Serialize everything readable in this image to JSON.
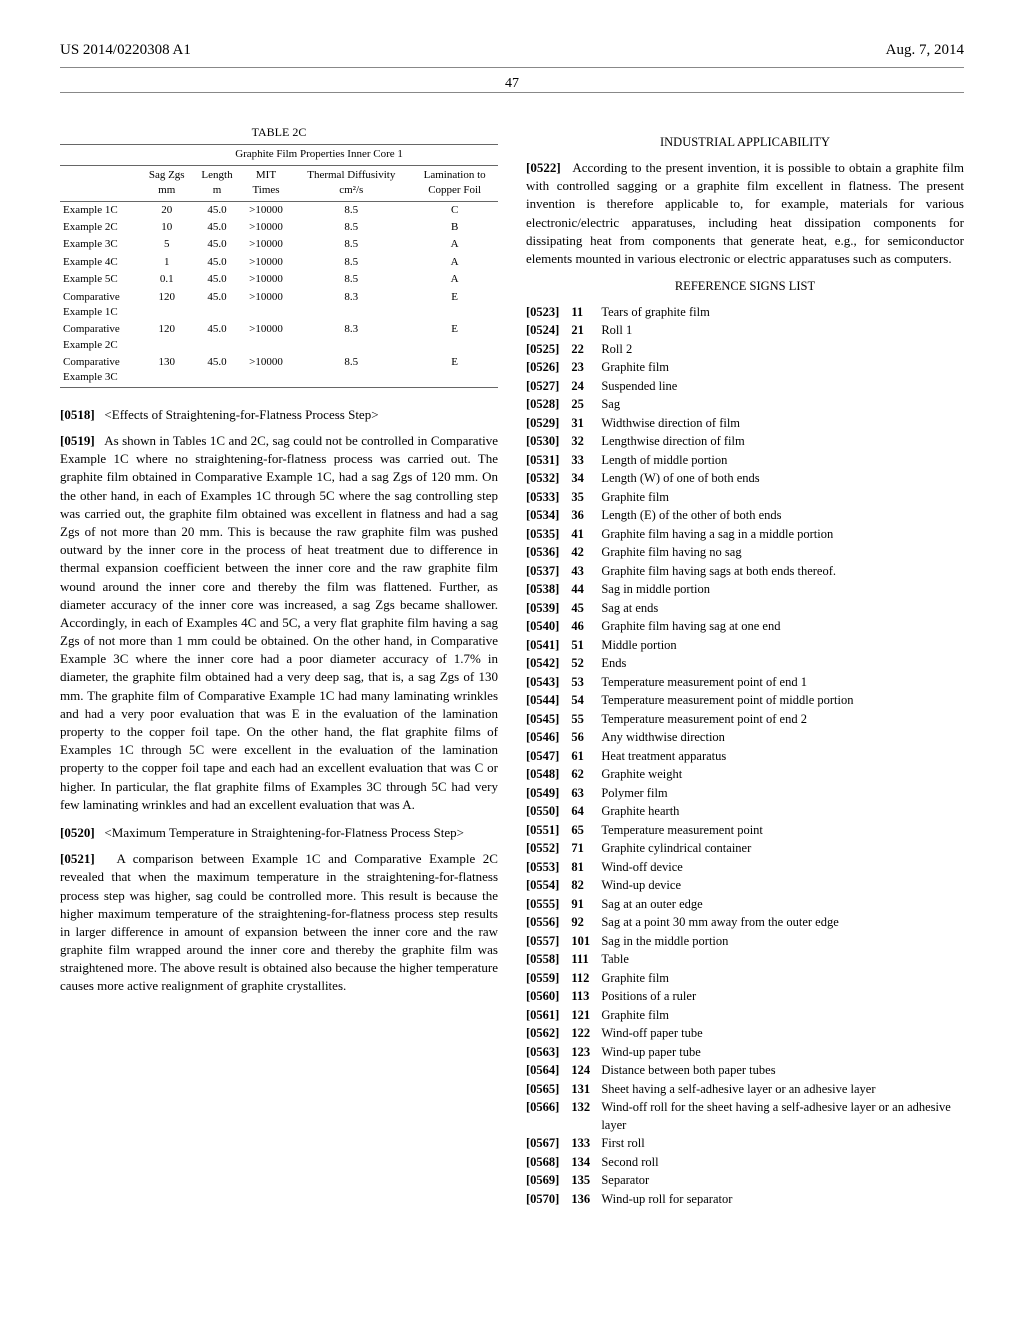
{
  "header": {
    "publication_number": "US 2014/0220308 A1",
    "publication_date": "Aug. 7, 2014",
    "page": "47"
  },
  "table": {
    "title": "TABLE 2C",
    "super_header": "Graphite Film Properties Inner Core 1",
    "columns": [
      {
        "label": "",
        "unit": ""
      },
      {
        "label": "Sag Zgs",
        "unit": "mm"
      },
      {
        "label": "Length",
        "unit": "m"
      },
      {
        "label": "MIT",
        "unit": "Times"
      },
      {
        "label": "Thermal Diffusivity",
        "unit": "cm²/s"
      },
      {
        "label": "Lamination to",
        "unit": "Copper Foil"
      }
    ],
    "rows": [
      [
        "Example 1C",
        "20",
        "45.0",
        ">10000",
        "8.5",
        "C"
      ],
      [
        "Example 2C",
        "10",
        "45.0",
        ">10000",
        "8.5",
        "B"
      ],
      [
        "Example 3C",
        "5",
        "45.0",
        ">10000",
        "8.5",
        "A"
      ],
      [
        "Example 4C",
        "1",
        "45.0",
        ">10000",
        "8.5",
        "A"
      ],
      [
        "Example 5C",
        "0.1",
        "45.0",
        ">10000",
        "8.5",
        "A"
      ],
      [
        "Comparative Example 1C",
        "120",
        "45.0",
        ">10000",
        "8.3",
        "E"
      ],
      [
        "Comparative Example 2C",
        "120",
        "45.0",
        ">10000",
        "8.3",
        "E"
      ],
      [
        "Comparative Example 3C",
        "130",
        "45.0",
        ">10000",
        "8.5",
        "E"
      ]
    ]
  },
  "left_paras": {
    "p0518": {
      "num": "[0518]",
      "text": "<Effects of Straightening-for-Flatness Process Step>"
    },
    "p0519": {
      "num": "[0519]",
      "text": "As shown in Tables 1C and 2C, sag could not be controlled in Comparative Example 1C where no straightening-for-flatness process was carried out. The graphite film obtained in Comparative Example 1C, had a sag Zgs of 120 mm. On the other hand, in each of Examples 1C through 5C where the sag controlling step was carried out, the graphite film obtained was excellent in flatness and had a sag Zgs of not more than 20 mm. This is because the raw graphite film was pushed outward by the inner core in the process of heat treatment due to difference in thermal expansion coefficient between the inner core and the raw graphite film wound around the inner core and thereby the film was flattened. Further, as diameter accuracy of the inner core was increased, a sag Zgs became shallower. Accordingly, in each of Examples 4C and 5C, a very flat graphite film having a sag Zgs of not more than 1 mm could be obtained. On the other hand, in Comparative Example 3C where the inner core had a poor diameter accuracy of 1.7% in diameter, the graphite film obtained had a very deep sag, that is, a sag Zgs of 130 mm. The graphite film of Comparative Example 1C had many laminating wrinkles and had a very poor evaluation that was E in the evaluation of the lamination property to the copper foil tape. On the other hand, the flat graphite films of Examples 1C through 5C were excellent in the evaluation of the lamination property to the copper foil tape and each had an excellent evaluation that was C or higher. In particular, the flat graphite films of Examples 3C through 5C had very few laminating wrinkles and had an excellent evaluation that was A."
    },
    "p0520": {
      "num": "[0520]",
      "text": "<Maximum Temperature in Straightening-for-Flatness Process Step>"
    },
    "p0521": {
      "num": "[0521]",
      "text": "A comparison between Example 1C and Comparative Example 2C revealed that when the maximum temperature in the straightening-for-flatness process step was higher, sag could be controlled more. This result is because the higher maximum temperature of the straightening-for-flatness process step results in larger difference in amount of expansion between the inner core and the raw graphite film wrapped around the inner core and thereby the graphite film was straightened more. The above result is obtained also because the higher temperature causes more active realignment of graphite crystallites."
    }
  },
  "right": {
    "section_applicability": "INDUSTRIAL APPLICABILITY",
    "p0522": {
      "num": "[0522]",
      "text": "According to the present invention, it is possible to obtain a graphite film with controlled sagging or a graphite film excellent in flatness. The present invention is therefore applicable to, for example, materials for various electronic/electric apparatuses, including heat dissipation components for dissipating heat from components that generate heat, e.g., for semiconductor elements mounted in various electronic or electric apparatuses such as computers."
    },
    "section_refs": "REFERENCE SIGNS LIST",
    "refs": [
      {
        "pnum": "[0523]",
        "num": "11",
        "desc": "Tears of graphite film"
      },
      {
        "pnum": "[0524]",
        "num": "21",
        "desc": "Roll 1"
      },
      {
        "pnum": "[0525]",
        "num": "22",
        "desc": "Roll 2"
      },
      {
        "pnum": "[0526]",
        "num": "23",
        "desc": "Graphite film"
      },
      {
        "pnum": "[0527]",
        "num": "24",
        "desc": "Suspended line"
      },
      {
        "pnum": "[0528]",
        "num": "25",
        "desc": "Sag"
      },
      {
        "pnum": "[0529]",
        "num": "31",
        "desc": "Widthwise direction of film"
      },
      {
        "pnum": "[0530]",
        "num": "32",
        "desc": "Lengthwise direction of film"
      },
      {
        "pnum": "[0531]",
        "num": "33",
        "desc": "Length of middle portion"
      },
      {
        "pnum": "[0532]",
        "num": "34",
        "desc": "Length (W) of one of both ends"
      },
      {
        "pnum": "[0533]",
        "num": "35",
        "desc": "Graphite film"
      },
      {
        "pnum": "[0534]",
        "num": "36",
        "desc": "Length (E) of the other of both ends"
      },
      {
        "pnum": "[0535]",
        "num": "41",
        "desc": "Graphite film having a sag in a middle portion"
      },
      {
        "pnum": "[0536]",
        "num": "42",
        "desc": "Graphite film having no sag"
      },
      {
        "pnum": "[0537]",
        "num": "43",
        "desc": "Graphite film having sags at both ends thereof."
      },
      {
        "pnum": "[0538]",
        "num": "44",
        "desc": "Sag in middle portion"
      },
      {
        "pnum": "[0539]",
        "num": "45",
        "desc": "Sag at ends"
      },
      {
        "pnum": "[0540]",
        "num": "46",
        "desc": "Graphite film having sag at one end"
      },
      {
        "pnum": "[0541]",
        "num": "51",
        "desc": "Middle portion"
      },
      {
        "pnum": "[0542]",
        "num": "52",
        "desc": "Ends"
      },
      {
        "pnum": "[0543]",
        "num": "53",
        "desc": "Temperature measurement point of end 1"
      },
      {
        "pnum": "[0544]",
        "num": "54",
        "desc": "Temperature measurement point of middle portion",
        "wrap": true
      },
      {
        "pnum": "[0545]",
        "num": "55",
        "desc": "Temperature measurement point of end 2"
      },
      {
        "pnum": "[0546]",
        "num": "56",
        "desc": "Any widthwise direction"
      },
      {
        "pnum": "[0547]",
        "num": "61",
        "desc": "Heat treatment apparatus"
      },
      {
        "pnum": "[0548]",
        "num": "62",
        "desc": "Graphite weight"
      },
      {
        "pnum": "[0549]",
        "num": "63",
        "desc": "Polymer film"
      },
      {
        "pnum": "[0550]",
        "num": "64",
        "desc": "Graphite hearth"
      },
      {
        "pnum": "[0551]",
        "num": "65",
        "desc": "Temperature measurement point"
      },
      {
        "pnum": "[0552]",
        "num": "71",
        "desc": "Graphite cylindrical container"
      },
      {
        "pnum": "[0553]",
        "num": "81",
        "desc": "Wind-off device"
      },
      {
        "pnum": "[0554]",
        "num": "82",
        "desc": "Wind-up device"
      },
      {
        "pnum": "[0555]",
        "num": "91",
        "desc": "Sag at an outer edge"
      },
      {
        "pnum": "[0556]",
        "num": "92",
        "desc": "Sag at a point 30 mm away from the outer edge"
      },
      {
        "pnum": "[0557]",
        "num": "101",
        "desc": "Sag in the middle portion"
      },
      {
        "pnum": "[0558]",
        "num": "111",
        "desc": "Table"
      },
      {
        "pnum": "[0559]",
        "num": "112",
        "desc": "Graphite film"
      },
      {
        "pnum": "[0560]",
        "num": "113",
        "desc": "Positions of a ruler"
      },
      {
        "pnum": "[0561]",
        "num": "121",
        "desc": "Graphite film"
      },
      {
        "pnum": "[0562]",
        "num": "122",
        "desc": "Wind-off paper tube"
      },
      {
        "pnum": "[0563]",
        "num": "123",
        "desc": "Wind-up paper tube"
      },
      {
        "pnum": "[0564]",
        "num": "124",
        "desc": "Distance between both paper tubes"
      },
      {
        "pnum": "[0565]",
        "num": "131",
        "desc": "Sheet having a self-adhesive layer or an adhesive layer",
        "wrap": true
      },
      {
        "pnum": "[0566]",
        "num": "132",
        "desc": "Wind-off roll for the sheet having a self-adhesive layer or an adhesive layer",
        "wrap": true
      },
      {
        "pnum": "[0567]",
        "num": "133",
        "desc": "First roll"
      },
      {
        "pnum": "[0568]",
        "num": "134",
        "desc": "Second roll"
      },
      {
        "pnum": "[0569]",
        "num": "135",
        "desc": "Separator"
      },
      {
        "pnum": "[0570]",
        "num": "136",
        "desc": "Wind-up roll for separator"
      }
    ]
  }
}
